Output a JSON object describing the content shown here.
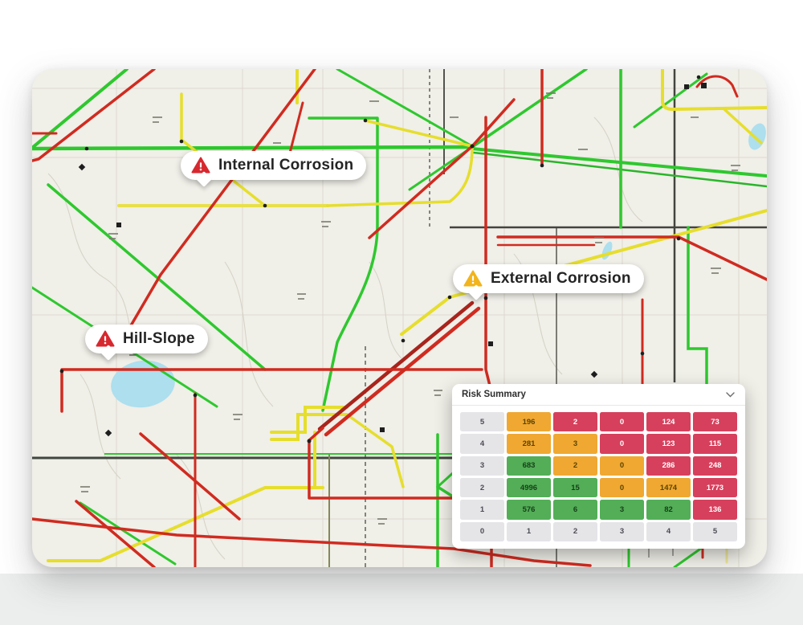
{
  "map": {
    "colors": {
      "background": "#f0efe8",
      "pipeline_low_risk": "#2ec82e",
      "pipeline_medium_risk": "#e6de2c",
      "pipeline_high_risk": "#d02b20",
      "pipeline_corridor_dark": "#a8241c",
      "road": "#44443f",
      "water": "#addfee"
    }
  },
  "callouts": [
    {
      "id": "internal-corrosion",
      "label": "Internal Corrosion",
      "severity": "high",
      "icon": "warning-triangle-icon",
      "icon_color": "#d7282f"
    },
    {
      "id": "external-corrosion",
      "label": "External Corrosion",
      "severity": "medium",
      "icon": "warning-triangle-icon",
      "icon_color": "#f2b41c"
    },
    {
      "id": "hill-slope",
      "label": "Hill-Slope",
      "severity": "high",
      "icon": "warning-triangle-icon",
      "icon_color": "#d7282f"
    }
  ],
  "risk_panel": {
    "title": "Risk Summary",
    "collapse_icon": "chevron-down-icon",
    "axis_labels": [
      "0",
      "1",
      "2",
      "3",
      "4",
      "5"
    ],
    "legend_levels": {
      "low": "#53ae57",
      "medium": "#f0a832",
      "high": "#d6405c",
      "axis_bg": "#e5e5e8"
    },
    "rows": [
      {
        "label": "5",
        "cells": [
          {
            "v": "196",
            "lv": "medium"
          },
          {
            "v": "2",
            "lv": "high"
          },
          {
            "v": "0",
            "lv": "high"
          },
          {
            "v": "124",
            "lv": "high"
          },
          {
            "v": "73",
            "lv": "high"
          }
        ]
      },
      {
        "label": "4",
        "cells": [
          {
            "v": "281",
            "lv": "medium"
          },
          {
            "v": "3",
            "lv": "medium"
          },
          {
            "v": "0",
            "lv": "high"
          },
          {
            "v": "123",
            "lv": "high"
          },
          {
            "v": "115",
            "lv": "high"
          }
        ]
      },
      {
        "label": "3",
        "cells": [
          {
            "v": "683",
            "lv": "low"
          },
          {
            "v": "2",
            "lv": "medium"
          },
          {
            "v": "0",
            "lv": "medium"
          },
          {
            "v": "286",
            "lv": "high"
          },
          {
            "v": "248",
            "lv": "high"
          }
        ]
      },
      {
        "label": "2",
        "cells": [
          {
            "v": "4996",
            "lv": "low"
          },
          {
            "v": "15",
            "lv": "low"
          },
          {
            "v": "0",
            "lv": "medium"
          },
          {
            "v": "1474",
            "lv": "medium"
          },
          {
            "v": "1773",
            "lv": "high"
          }
        ]
      },
      {
        "label": "1",
        "cells": [
          {
            "v": "576",
            "lv": "low"
          },
          {
            "v": "6",
            "lv": "low"
          },
          {
            "v": "3",
            "lv": "low"
          },
          {
            "v": "82",
            "lv": "low"
          },
          {
            "v": "136",
            "lv": "high"
          }
        ]
      }
    ]
  }
}
